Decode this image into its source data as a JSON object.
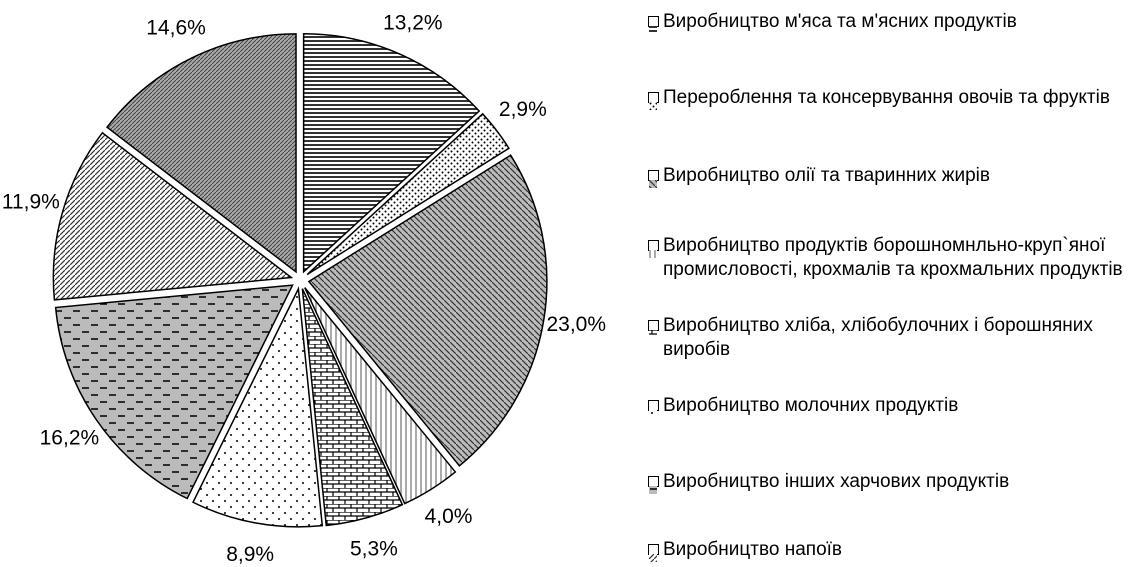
{
  "chart_data": {
    "type": "pie",
    "categories": [
      "Виробництво м'яса та м'ясних продуктів",
      "Перероблення та консервування овочів та фруктів",
      "Виробництво олії та тваринних жирів",
      "Виробництво продуктів борошномнльно-круп`яної промисловості, крохмалів та крохмальних продуктів",
      "Виробництво хліба, хлібобулочних і борошняних виробів",
      "Виробництво молочних продуктів",
      "Виробництво інших харчових продуктів",
      "Виробництво напоїв",
      null
    ],
    "values": [
      13.2,
      2.9,
      23.0,
      4.0,
      5.3,
      8.9,
      16.2,
      11.9,
      14.6
    ],
    "value_labels": [
      "13,2%",
      "2,9%",
      "23,0%",
      "4,0%",
      "5,3%",
      "8,9%",
      "16,2%",
      "11,9%",
      "14,6%"
    ],
    "patterns": [
      "hlines",
      "dots",
      "diag-gray",
      "vlines",
      "brick",
      "dots-sparse",
      "dashes",
      "diag-white",
      "diag-dense"
    ]
  }
}
